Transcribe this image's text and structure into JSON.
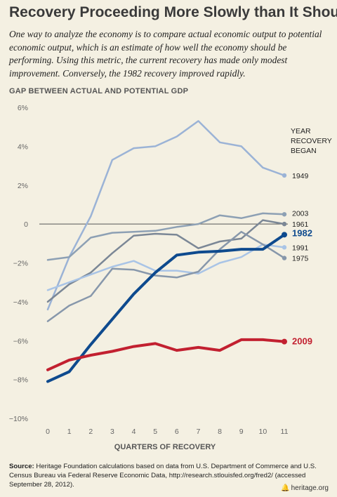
{
  "header": {
    "title": "Recovery Proceeding More Slowly than It Should",
    "subtitle": "One way to analyze the economy is to compare actual economic output to potential economic output, which is an estimate of how well the economy should be performing. Using this metric, the current recovery has made only modest improvement. Conversely, the 1982 recovery improved rapidly."
  },
  "chart_data": {
    "type": "line",
    "ylabel": "GAP BETWEEN ACTUAL AND POTENTIAL GDP",
    "xlabel": "QUARTERS OF RECOVERY",
    "legend_title": [
      "YEAR",
      "RECOVERY",
      "BEGAN"
    ],
    "x": [
      0,
      1,
      2,
      3,
      4,
      5,
      6,
      7,
      8,
      9,
      10,
      11
    ],
    "ylim": [
      -10,
      6
    ],
    "yticks": [
      "6%",
      "4%",
      "2%",
      "0",
      "−2%",
      "−4%",
      "−6%",
      "−8%",
      "−10%"
    ],
    "ytick_values": [
      6,
      4,
      2,
      0,
      -2,
      -4,
      -6,
      -8,
      -10
    ],
    "xticks": [
      "0",
      "1",
      "2",
      "3",
      "4",
      "5",
      "6",
      "7",
      "8",
      "9",
      "10",
      "11"
    ],
    "series": [
      {
        "name": "1949",
        "color": "#9bb3d6",
        "width": 2.5,
        "values": [
          -4.4,
          -1.7,
          0.4,
          3.3,
          3.9,
          4.0,
          4.5,
          5.3,
          4.2,
          4.0,
          2.9,
          2.5
        ]
      },
      {
        "name": "2003",
        "color": "#8da0b4",
        "width": 2.5,
        "values": [
          -1.85,
          -1.7,
          -0.7,
          -0.45,
          -0.4,
          -0.35,
          -0.15,
          0.0,
          0.45,
          0.3,
          0.55,
          0.5
        ]
      },
      {
        "name": "1961",
        "color": "#7b8796",
        "width": 2.5,
        "values": [
          -4.0,
          -3.1,
          -2.5,
          -1.5,
          -0.6,
          -0.5,
          -0.55,
          -1.25,
          -0.9,
          -0.75,
          0.2,
          0.0
        ]
      },
      {
        "name": "1991",
        "color": "#a9c4e6",
        "width": 2.5,
        "values": [
          -3.4,
          -3.0,
          -2.6,
          -2.2,
          -1.9,
          -2.4,
          -2.4,
          -2.55,
          -2.0,
          -1.7,
          -1.05,
          -1.2
        ]
      },
      {
        "name": "1975",
        "color": "#8797ab",
        "width": 2.5,
        "values": [
          -5.0,
          -4.2,
          -3.7,
          -2.3,
          -2.35,
          -2.65,
          -2.75,
          -2.45,
          -1.3,
          -0.4,
          -1.05,
          -1.75
        ]
      },
      {
        "name": "1982",
        "color": "#0e4a8e",
        "width": 4,
        "values": [
          -8.1,
          -7.6,
          -6.2,
          -4.9,
          -3.6,
          -2.5,
          -1.6,
          -1.45,
          -1.4,
          -1.3,
          -1.3,
          -0.55
        ]
      },
      {
        "name": "2009",
        "color": "#c22030",
        "width": 4,
        "values": [
          -7.5,
          -7.0,
          -6.75,
          -6.55,
          -6.3,
          -6.15,
          -6.5,
          -6.35,
          -6.5,
          -5.95,
          -5.95,
          -6.05
        ]
      }
    ]
  },
  "footer": {
    "source_label": "Source:",
    "source_text": "Heritage Foundation calculations based on data from U.S. Department of Commerce and U.S.  Census Bureau via Federal Reserve Economic Data, http://research.stlouisfed.org/fred2/ (accessed September 28, 2012).",
    "brand": "heritage.org",
    "brand_icon": "liberty-bell-icon"
  }
}
